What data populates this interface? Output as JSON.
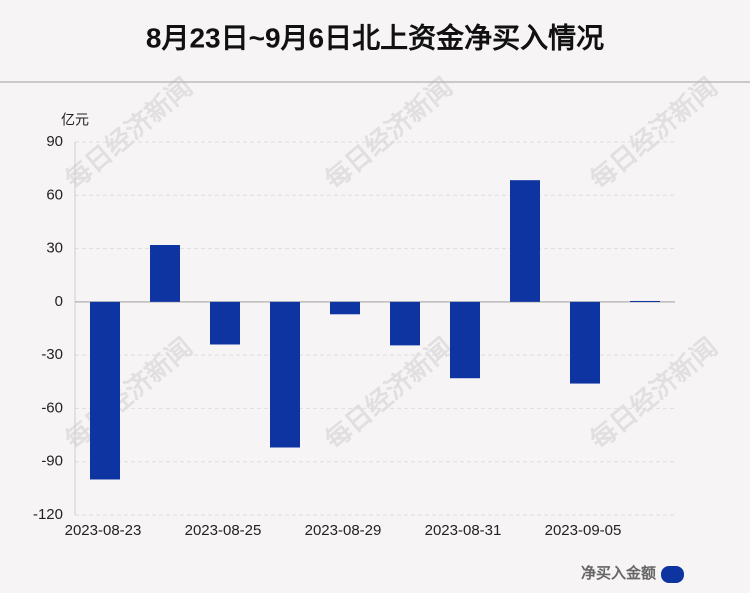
{
  "chart_data": {
    "type": "bar",
    "title": "8月23日~9月6日北上资金净买入情况",
    "y_label": "亿元",
    "watermark": "每日经济新闻",
    "categories": [
      "2023-08-23",
      null,
      "2023-08-25",
      null,
      "2023-08-29",
      null,
      "2023-08-31",
      null,
      "2023-09-05",
      null
    ],
    "series": [
      {
        "name": "净买入金额",
        "color": "#0d34a0",
        "values": [
          -100,
          32,
          -24,
          -82,
          -7,
          -24.5,
          -43,
          68.5,
          -46,
          0.5
        ]
      }
    ],
    "ylim": [
      -120,
      90
    ],
    "yticks": [
      -120,
      -90,
      -60,
      -30,
      0,
      30,
      60,
      90
    ],
    "grid": true,
    "legend": "bottom-right"
  }
}
